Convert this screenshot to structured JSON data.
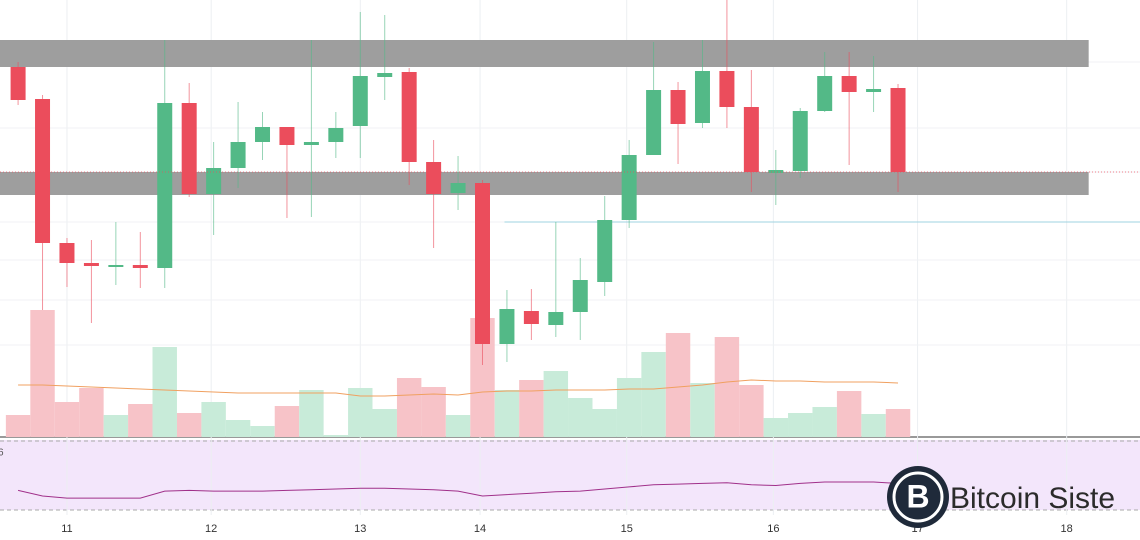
{
  "chart_data": {
    "type": "candlestick",
    "x": [
      1,
      2,
      3,
      4,
      5,
      6,
      7,
      8,
      9,
      10,
      11,
      12,
      13,
      14,
      15,
      16,
      17,
      18,
      19,
      20,
      21,
      22,
      23,
      24,
      25,
      26,
      27,
      28,
      29,
      30,
      31,
      32,
      33,
      34,
      35,
      36,
      37
    ],
    "open": [
      373,
      341,
      197,
      177,
      173,
      175,
      172,
      337,
      246,
      272,
      298,
      313,
      295,
      298,
      314,
      363,
      368,
      278,
      247,
      257,
      96,
      129,
      115,
      128,
      158,
      220,
      285,
      350,
      317,
      369,
      333,
      267,
      269,
      329,
      364,
      348,
      352
    ],
    "close": [
      340,
      197,
      177,
      174,
      175,
      172,
      337,
      246,
      272,
      298,
      313,
      295,
      298,
      312,
      364,
      367,
      278,
      246,
      257,
      96,
      131,
      116,
      128,
      160,
      220,
      285,
      350,
      316,
      369,
      333,
      268,
      270,
      329,
      364,
      348,
      351,
      268
    ],
    "high": [
      378,
      345,
      202,
      200,
      218,
      208,
      400,
      357,
      298,
      338,
      328,
      313,
      400,
      328,
      428,
      425,
      372,
      300,
      284,
      260,
      150,
      151,
      218,
      182,
      244,
      300,
      398,
      358,
      400,
      440,
      370,
      290,
      332,
      388,
      388,
      384,
      356
    ],
    "low": [
      335,
      130,
      153,
      117,
      155,
      152,
      152,
      243,
      205,
      252,
      280,
      222,
      223,
      282,
      282,
      340,
      255,
      192,
      230,
      75,
      78,
      100,
      103,
      100,
      144,
      212,
      285,
      276,
      312,
      312,
      248,
      235,
      262,
      328,
      275,
      328,
      248
    ],
    "volume": [
      22,
      127,
      35,
      49,
      22,
      33,
      90,
      24,
      35,
      17,
      11,
      31,
      47,
      2,
      49,
      28,
      59,
      50,
      22,
      119,
      47,
      57,
      66,
      39,
      28,
      59,
      85,
      104,
      54,
      100,
      52,
      19,
      24,
      30,
      46,
      23,
      28
    ],
    "volume_ma": [
      52,
      52,
      51,
      50,
      49,
      48,
      47,
      46,
      45,
      44,
      44,
      44,
      44,
      44,
      41,
      41,
      42,
      43,
      42,
      45,
      46,
      46,
      47,
      47,
      47,
      48,
      48,
      50,
      52,
      55,
      57,
      56,
      56,
      55,
      55,
      55,
      54
    ],
    "indicator": [
      28,
      20,
      17,
      17,
      17,
      17,
      27,
      28,
      27,
      27,
      27,
      28,
      29,
      30,
      31,
      31,
      30,
      29,
      27,
      20,
      22,
      24,
      26,
      27,
      30,
      33,
      36,
      37,
      38,
      39,
      36,
      35,
      38,
      40,
      40,
      40,
      38
    ],
    "indicator_label": "6",
    "xlim": [
      0.26,
      46.9
    ],
    "xticks": [
      {
        "value": 3,
        "label": "11"
      },
      {
        "value": 8.9,
        "label": "12"
      },
      {
        "value": 15,
        "label": "13"
      },
      {
        "value": 19.9,
        "label": "14"
      },
      {
        "value": 25.9,
        "label": "15"
      },
      {
        "value": 31.9,
        "label": "16"
      },
      {
        "value": 37.8,
        "label": "17"
      },
      {
        "value": 43.9,
        "label": "18"
      }
    ],
    "ylim": [
      3,
      440
    ],
    "volume_lim": [
      0,
      130
    ],
    "indicator_lim": [
      0,
      100
    ],
    "zones": [
      {
        "from": 373,
        "to": 400,
        "end": 44.8
      },
      {
        "from": 245,
        "to": 268,
        "end": 44.8
      }
    ],
    "level": {
      "value": 218,
      "start": 20.9
    },
    "grid": true,
    "up_color": "#53b987",
    "down_color": "#eb4d5c",
    "volume_up_color": "#c8ebd9",
    "volume_down_color": "#f7c3c8",
    "ma_color": "#f0a060",
    "indicator_color": "#a0308a",
    "zone_color": "#999999",
    "level_color": "#9fd3e0",
    "watermark": "Bitcoin Siste"
  }
}
